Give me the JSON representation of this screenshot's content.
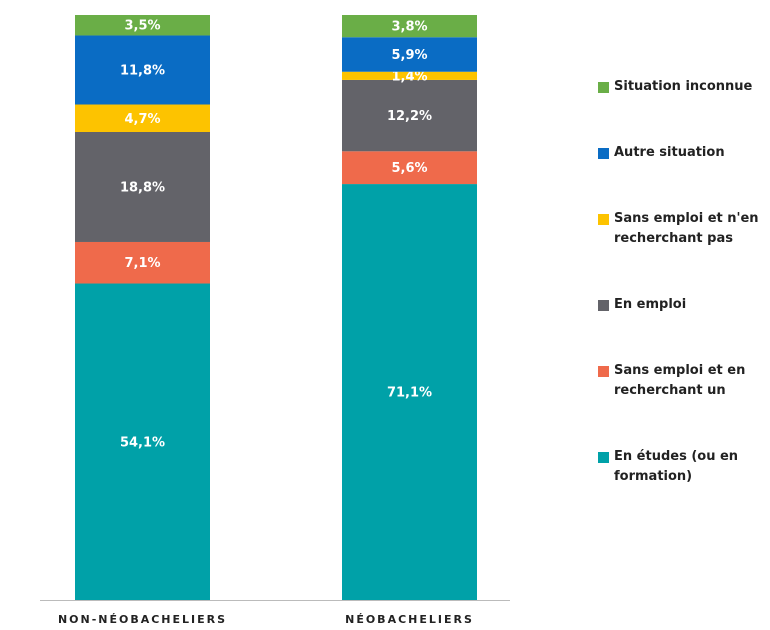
{
  "chart_data": {
    "type": "stacked_bar",
    "categories": [
      "NON-NÉOBACHELIERS",
      "NÉOBACHELIERS"
    ],
    "ylim": [
      0,
      100
    ],
    "series": [
      {
        "name": "En études (ou en formation)",
        "color": "#00a1a8",
        "values": [
          54.1,
          71.1
        ],
        "value_labels": [
          "54,1%",
          "71,1%"
        ]
      },
      {
        "name": "Sans emploi et en recherchant un",
        "color": "#ef6a4b",
        "values": [
          7.1,
          5.6
        ],
        "value_labels": [
          "7,1%",
          "5,6%"
        ]
      },
      {
        "name": "En emploi",
        "color": "#636369",
        "values": [
          18.8,
          12.2
        ],
        "value_labels": [
          "18,8%",
          "12,2%"
        ]
      },
      {
        "name": "Sans emploi et n'en recherchant pas",
        "color": "#fdc300",
        "values": [
          4.7,
          1.4
        ],
        "value_labels": [
          "4,7%",
          "1,4%"
        ]
      },
      {
        "name": "Autre situation",
        "color": "#0a6cc4",
        "values": [
          11.8,
          5.9
        ],
        "value_labels": [
          "11,8%",
          "5,9%"
        ]
      },
      {
        "name": "Situation inconnue",
        "color": "#6aae47",
        "values": [
          3.5,
          3.8
        ],
        "value_labels": [
          "3,5%",
          "3,8%"
        ]
      }
    ]
  }
}
